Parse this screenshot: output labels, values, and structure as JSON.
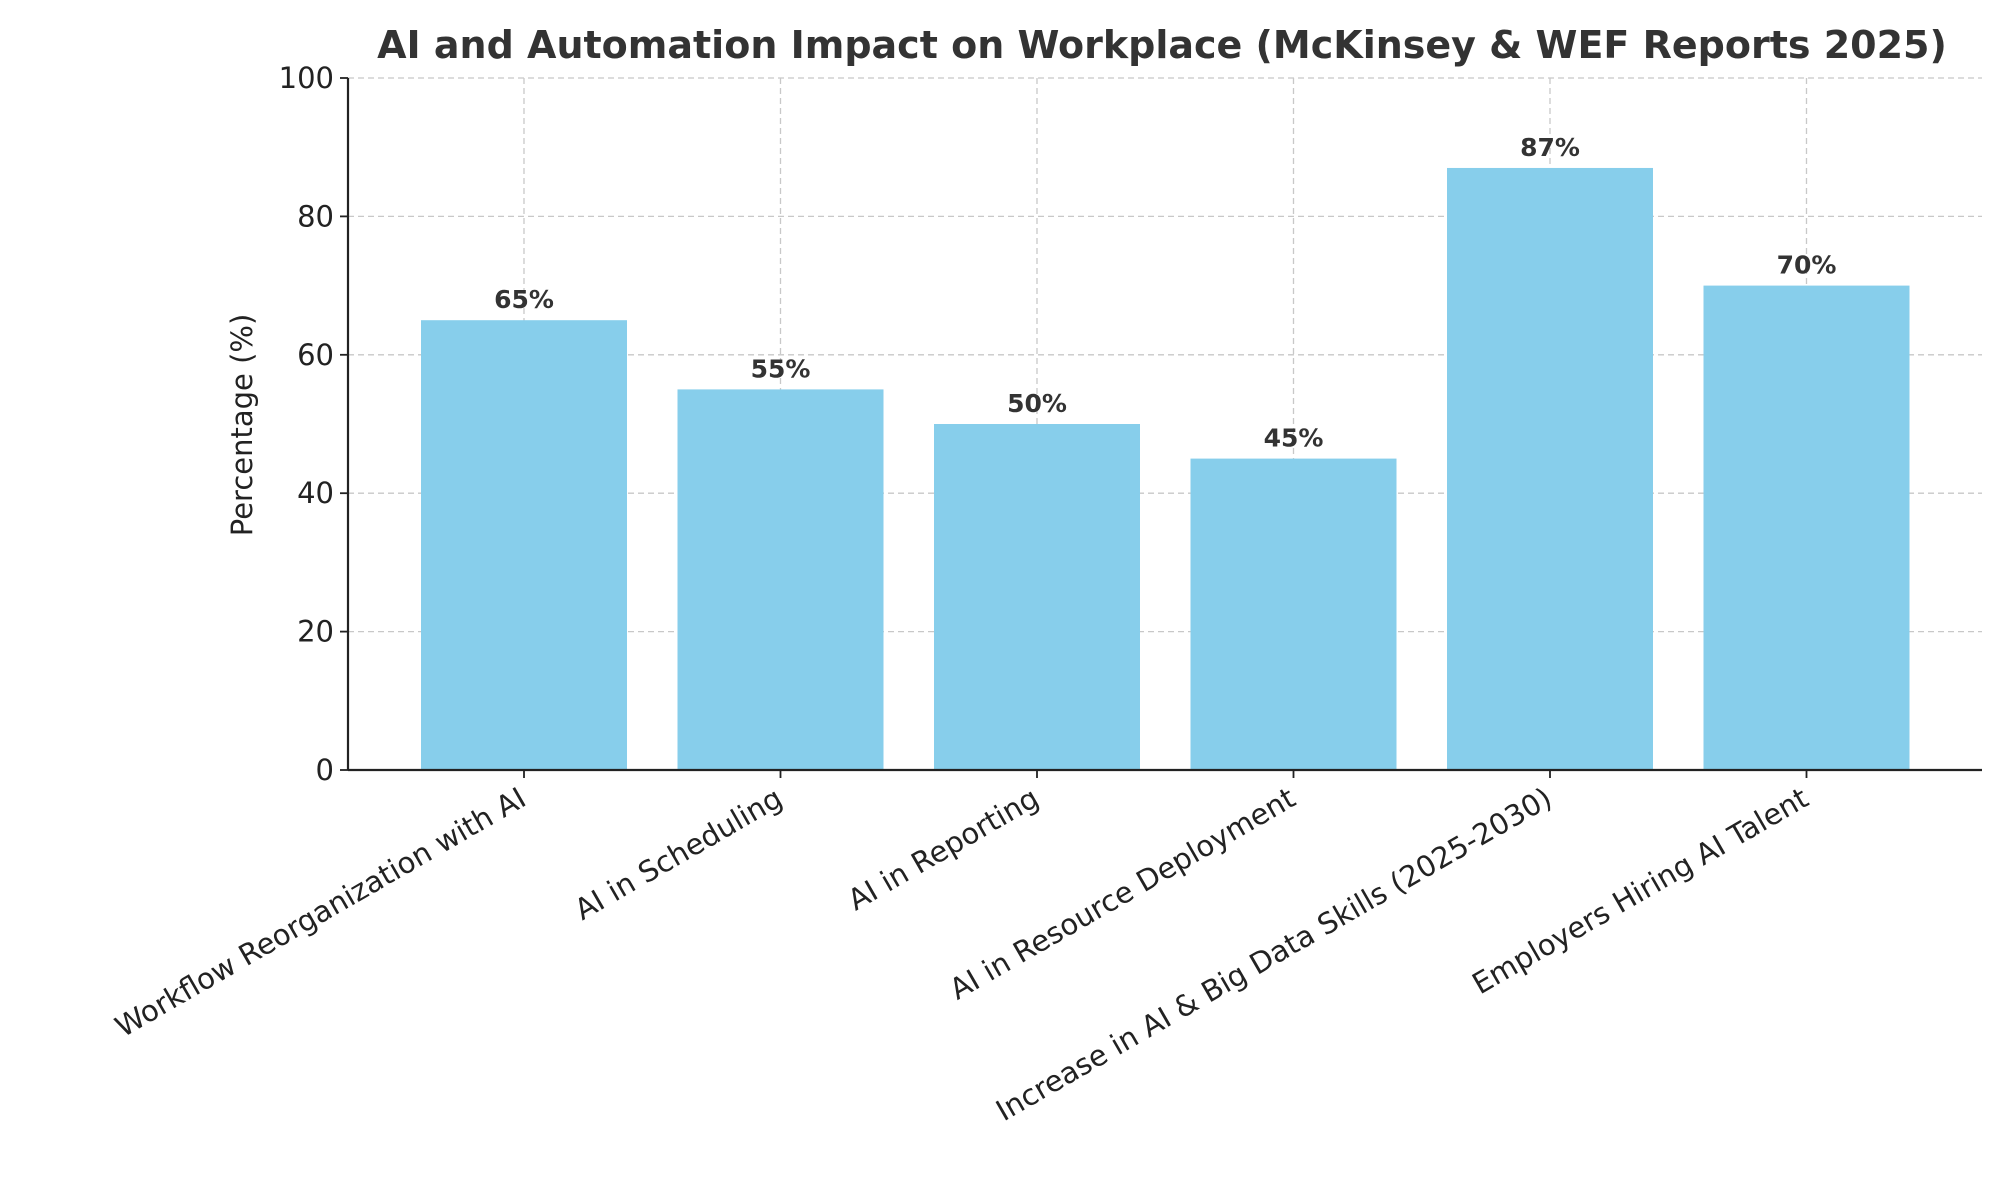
{
  "chart_data": {
    "type": "bar",
    "title": "AI and Automation Impact on Workplace (McKinsey & WEF Reports 2025)",
    "xlabel": "",
    "ylabel": "Percentage (%)",
    "ylim": [
      0,
      100
    ],
    "yticks": [
      0,
      20,
      40,
      60,
      80,
      100
    ],
    "grid": true,
    "categories": [
      "Workflow Reorganization with AI",
      "AI in Scheduling",
      "AI in Reporting",
      "AI in Resource Deployment",
      "Increase in AI & Big Data Skills (2025-2030)",
      "Employers Hiring AI Talent"
    ],
    "values": [
      65,
      55,
      50,
      45,
      87,
      70
    ],
    "data_labels": [
      "65%",
      "55%",
      "50%",
      "45%",
      "87%",
      "70%"
    ],
    "bar_color": "#87CEEB"
  }
}
